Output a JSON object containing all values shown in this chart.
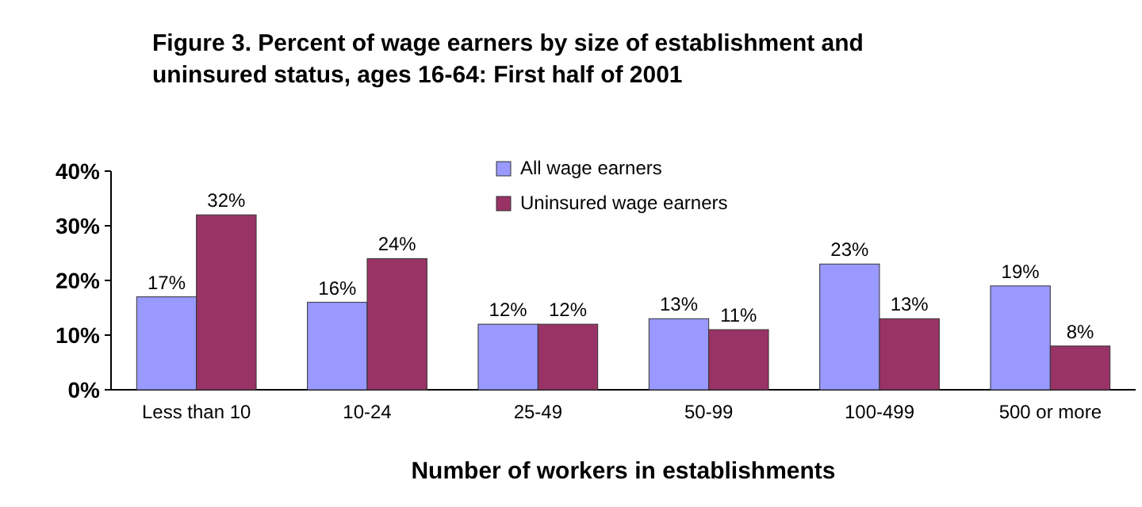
{
  "chart_data": {
    "type": "bar",
    "title": "Figure 3.  Percent of  wage earners by size of establishment and uninsured status, ages 16-64: First half of 2001",
    "xlabel": "Number of workers in establishments",
    "categories": [
      "Less than 10",
      "10-24",
      "25-49",
      "50-99",
      "100-499",
      "500 or more"
    ],
    "series": [
      {
        "name": "All wage earners",
        "color": "#9999ff",
        "values": [
          17,
          16,
          12,
          13,
          23,
          19
        ],
        "value_labels": [
          "17%",
          "16%",
          "12%",
          "13%",
          "23%",
          "19%"
        ]
      },
      {
        "name": "Uninsured wage earners",
        "color": "#993366",
        "values": [
          32,
          24,
          12,
          11,
          13,
          8
        ],
        "value_labels": [
          "32%",
          "24%",
          "12%",
          "11%",
          "13%",
          "8%"
        ]
      }
    ],
    "ylim": [
      0,
      40
    ],
    "yticks": [
      {
        "value": 0,
        "label": "0%"
      },
      {
        "value": 10,
        "label": "10%"
      },
      {
        "value": 20,
        "label": "20%"
      },
      {
        "value": 30,
        "label": "30%"
      },
      {
        "value": 40,
        "label": "40%"
      }
    ],
    "legend": "top",
    "grid": false
  }
}
